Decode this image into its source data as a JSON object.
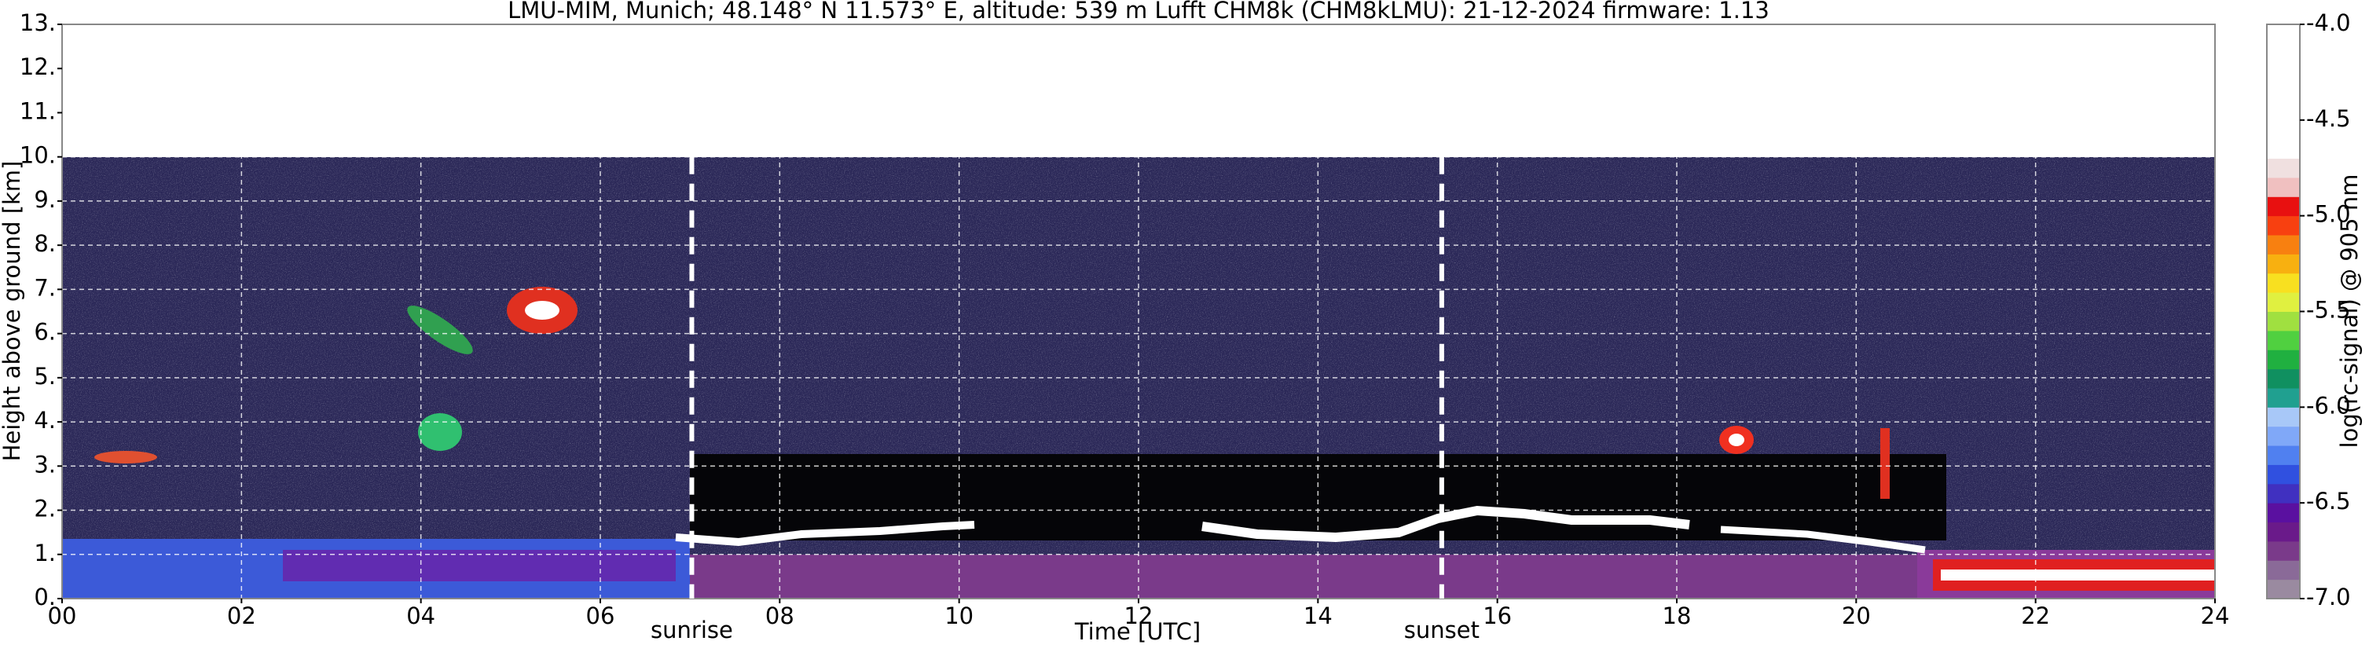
{
  "chart_data": {
    "type": "heatmap",
    "title": "LMU-MIM, Munich; 48.148° N 11.573° E, altitude: 539 m    Lufft CHM8k (CHM8kLMU): 21-12-2024    firmware: 1.13",
    "x_label": "Time [UTC]",
    "y_label": "Height above ground [km]",
    "xlim": [
      0,
      24
    ],
    "xticks": [
      {
        "value": 0,
        "label": "00"
      },
      {
        "value": 2,
        "label": "02"
      },
      {
        "value": 4,
        "label": "04"
      },
      {
        "value": 6,
        "label": "06"
      },
      {
        "value": 8,
        "label": "08"
      },
      10,
      12,
      14,
      16,
      18,
      20,
      22,
      24
    ],
    "ylim": [
      0,
      13
    ],
    "yticks": [
      {
        "value": 0,
        "label": "0."
      },
      {
        "value": 1,
        "label": "1."
      },
      {
        "value": 2,
        "label": "2."
      },
      {
        "value": 3,
        "label": "3."
      },
      {
        "value": 4,
        "label": "4."
      },
      {
        "value": 5,
        "label": "5."
      },
      {
        "value": 6,
        "label": "6."
      },
      {
        "value": 7,
        "label": "7."
      },
      {
        "value": 8,
        "label": "8."
      },
      {
        "value": 9,
        "label": "9."
      },
      {
        "value": 10,
        "label": "10."
      },
      {
        "value": 11,
        "label": "11."
      },
      {
        "value": 12,
        "label": "12."
      },
      {
        "value": 13,
        "label": "13."
      }
    ],
    "grid": true,
    "annotations": [
      {
        "text": "sunrise",
        "x": 7.02
      },
      {
        "text": "sunset",
        "x": 15.38
      }
    ],
    "colorbar": {
      "label": "log(rc-signal) @ 905 nm",
      "clim": [
        -7,
        -4
      ],
      "ticks": [
        {
          "value": -4,
          "label": "-4.0"
        },
        {
          "value": -4.5,
          "label": "-4.5"
        },
        {
          "value": -5,
          "label": "-5.0"
        },
        {
          "value": -5.5,
          "label": "-5.5"
        },
        {
          "value": -6,
          "label": "-6.0"
        },
        {
          "value": -6.5,
          "label": "-6.5"
        },
        {
          "value": -7,
          "label": "-7.0"
        }
      ],
      "colors": [
        "#9a8aa0",
        "#8a6a98",
        "#7a3a8a",
        "#6a1a8a",
        "#5a10a0",
        "#4030c0",
        "#3050e0",
        "#5080f0",
        "#80a8f8",
        "#a8c8f8",
        "#20a090",
        "#109060",
        "#20b040",
        "#50d040",
        "#a0e040",
        "#e0f040",
        "#f8e020",
        "#f8b010",
        "#f88010",
        "#f84010",
        "#e81010",
        "#f0c0c0",
        "#f0e0e0",
        "#ffffff",
        "#ffffff",
        "#ffffff",
        "#ffffff",
        "#ffffff",
        "#ffffff",
        "#ffffff"
      ]
    }
  }
}
